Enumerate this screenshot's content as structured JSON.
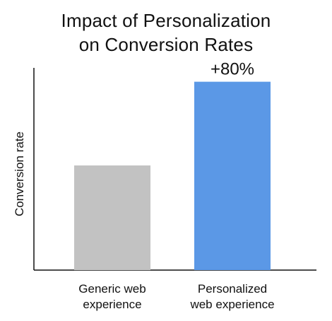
{
  "chart_data": {
    "type": "bar",
    "title": [
      "Impact of Personalization",
      "on Conversion Rates"
    ],
    "xlabel": "",
    "ylabel": "Conversion rate",
    "categories": [
      [
        "Generic web",
        "experience"
      ],
      [
        "Personalized",
        "web experience"
      ]
    ],
    "values": [
      1.0,
      1.8
    ],
    "ylim": [
      0,
      2.0
    ],
    "colors": [
      "#c2c2c2",
      "#5b98e6"
    ],
    "data_labels": [
      "",
      "+80%"
    ],
    "grid": false,
    "legend": "none"
  }
}
